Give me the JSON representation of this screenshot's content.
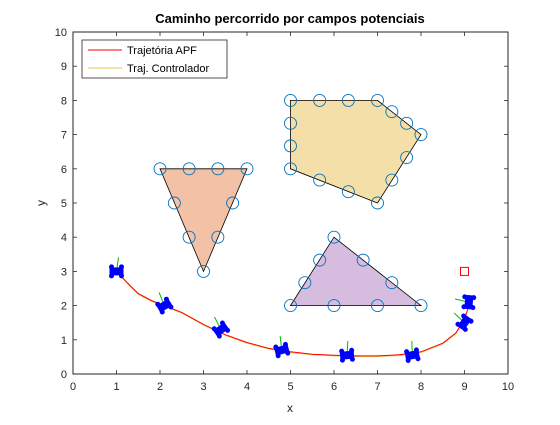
{
  "chart_data": {
    "type": "line",
    "title": "Caminho percorrido por campos potenciais",
    "xlabel": "x",
    "ylabel": "y",
    "xlim": [
      0,
      10
    ],
    "ylim": [
      0,
      10
    ],
    "xticks": [
      0,
      1,
      2,
      3,
      4,
      5,
      6,
      7,
      8,
      9,
      10
    ],
    "yticks": [
      0,
      1,
      2,
      3,
      4,
      5,
      6,
      7,
      8,
      9,
      10
    ],
    "grid": false,
    "legend_position": "top-left",
    "series": [
      {
        "name": "Trajetória APF",
        "color": "#ff0000",
        "x": [
          1.0,
          1.3,
          1.5,
          1.8,
          2.1,
          2.5,
          3.0,
          3.5,
          4.0,
          4.5,
          5.0,
          5.5,
          6.0,
          6.5,
          7.0,
          7.5,
          8.0,
          8.5,
          8.8,
          9.0,
          9.1,
          9.1
        ],
        "y": [
          3.0,
          2.6,
          2.35,
          2.15,
          2.0,
          1.8,
          1.45,
          1.15,
          0.92,
          0.75,
          0.65,
          0.58,
          0.55,
          0.53,
          0.53,
          0.56,
          0.65,
          0.9,
          1.2,
          1.6,
          2.0,
          2.3
        ]
      },
      {
        "name": "Traj. Controlador",
        "color": "#e6c84a",
        "x": [
          1.0,
          1.3,
          1.5,
          1.8,
          2.1,
          2.5,
          3.0,
          3.5,
          4.0,
          4.5,
          5.0,
          5.5,
          6.0,
          6.5,
          7.0,
          7.5,
          8.0,
          8.5,
          8.8,
          9.0,
          9.1,
          9.1
        ],
        "y": [
          2.98,
          2.58,
          2.33,
          2.13,
          1.98,
          1.78,
          1.43,
          1.13,
          0.9,
          0.73,
          0.63,
          0.56,
          0.53,
          0.51,
          0.51,
          0.54,
          0.63,
          0.88,
          1.18,
          1.58,
          1.98,
          2.28
        ]
      }
    ],
    "obstacles": [
      {
        "shape": "triangle-down",
        "fill": "#f2c1a6",
        "vertices": [
          [
            2.0,
            6.0
          ],
          [
            4.0,
            6.0
          ],
          [
            3.0,
            3.0
          ]
        ],
        "circles": [
          [
            2.0,
            6.0
          ],
          [
            2.67,
            6.0
          ],
          [
            3.33,
            6.0
          ],
          [
            4.0,
            6.0
          ],
          [
            2.33,
            5.0
          ],
          [
            3.67,
            5.0
          ],
          [
            2.67,
            4.0
          ],
          [
            3.33,
            4.0
          ],
          [
            3.0,
            3.0
          ]
        ]
      },
      {
        "shape": "pentagon",
        "fill": "#f5dfa8",
        "vertices": [
          [
            5.0,
            8.0
          ],
          [
            7.0,
            8.0
          ],
          [
            8.0,
            7.0
          ],
          [
            7.0,
            5.0
          ],
          [
            5.0,
            6.0
          ]
        ],
        "circles": [
          [
            5.0,
            8.0
          ],
          [
            5.67,
            8.0
          ],
          [
            6.33,
            8.0
          ],
          [
            7.0,
            8.0
          ],
          [
            7.33,
            7.67
          ],
          [
            7.67,
            7.33
          ],
          [
            8.0,
            7.0
          ],
          [
            7.67,
            6.33
          ],
          [
            7.33,
            5.67
          ],
          [
            7.0,
            5.0
          ],
          [
            6.33,
            5.33
          ],
          [
            5.67,
            5.67
          ],
          [
            5.0,
            6.0
          ],
          [
            5.0,
            6.67
          ],
          [
            5.0,
            7.33
          ]
        ]
      },
      {
        "shape": "triangle",
        "fill": "#d6bde0",
        "vertices": [
          [
            5.0,
            2.0
          ],
          [
            6.0,
            4.0
          ],
          [
            8.0,
            2.0
          ]
        ],
        "circles": [
          [
            5.0,
            2.0
          ],
          [
            6.0,
            2.0
          ],
          [
            7.0,
            2.0
          ],
          [
            8.0,
            2.0
          ],
          [
            5.33,
            2.67
          ],
          [
            5.67,
            3.33
          ],
          [
            6.0,
            4.0
          ],
          [
            6.67,
            3.33
          ],
          [
            7.33,
            2.67
          ]
        ]
      }
    ],
    "goal": {
      "x": 9.0,
      "y": 3.0,
      "color": "#ff0000"
    },
    "robots": [
      {
        "x": 1.0,
        "y": 3.0,
        "heading": 0
      },
      {
        "x": 2.1,
        "y": 2.0,
        "heading": 30
      },
      {
        "x": 3.4,
        "y": 1.3,
        "heading": 35
      },
      {
        "x": 4.8,
        "y": 0.7,
        "heading": 15
      },
      {
        "x": 6.3,
        "y": 0.55,
        "heading": 5
      },
      {
        "x": 7.8,
        "y": 0.55,
        "heading": 10
      },
      {
        "x": 9.0,
        "y": 1.5,
        "heading": 55
      },
      {
        "x": 9.1,
        "y": 2.1,
        "heading": 85
      }
    ],
    "robot_color": "#0000ff",
    "heading_color": "#00bb00"
  }
}
